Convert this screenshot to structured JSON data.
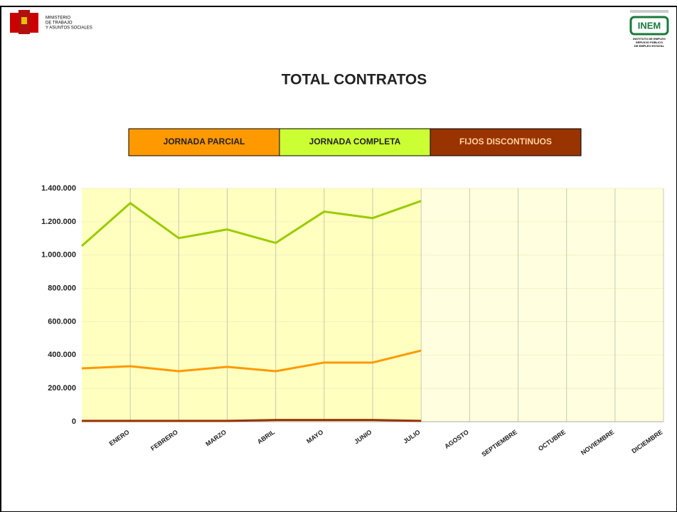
{
  "header": {
    "ministry": [
      "MINISTERIO",
      "DE TRABAJO",
      "Y ASUNTOS SOCIALES"
    ],
    "inem": {
      "name": "INEM",
      "lines": [
        "INSTITUTO DE EMPLEO",
        "SERVICIO PÚBLICO",
        "DE EMPLEO ESTATAL"
      ]
    }
  },
  "chart_data": {
    "type": "line",
    "title": "TOTAL CONTRATOS",
    "categories": [
      null,
      "ENERO",
      "FEBRERO",
      "MARZO",
      "ABRIL",
      "MAYO",
      "JUNIO",
      "JULIO",
      "AGOSTO",
      "SEPTIEMBRE",
      "OCTUBRE",
      "NOVIEMBRE",
      "DICIEMBRE"
    ],
    "series": [
      {
        "name": "JORNADA PARCIAL",
        "color": "#ff9900",
        "legend_fill": "#ff9900",
        "values": [
          320000,
          333000,
          303000,
          329000,
          303000,
          355000,
          355000,
          427000,
          null,
          null,
          null,
          null,
          null
        ]
      },
      {
        "name": "JORNADA COMPLETA",
        "color": "#99cc00",
        "legend_fill": "#ccff33",
        "values": [
          1055000,
          1312000,
          1102000,
          1154000,
          1073000,
          1261000,
          1222000,
          1325000,
          null,
          null,
          null,
          null,
          null
        ]
      },
      {
        "name": "FIJOS DISCONTINUOS",
        "color": "#993300",
        "legend_fill": "#993300",
        "values": [
          5000,
          5000,
          5000,
          5000,
          10000,
          10000,
          10000,
          5000,
          null,
          null,
          null,
          null,
          null
        ]
      }
    ],
    "ylim": [
      0,
      1400000
    ],
    "yticks": [
      0,
      {
        "value": 200000,
        "label": "200.000"
      },
      {
        "value": 400000,
        "label": "400.000"
      },
      {
        "value": 600000,
        "label": "600.000"
      },
      {
        "value": 800000,
        "label": "800.000"
      },
      {
        "value": 1000000,
        "label": "1.000.000"
      },
      {
        "value": 1200000,
        "label": "1.200.000"
      },
      {
        "value": 1400000,
        "label": "1.400.000"
      }
    ],
    "grid": true,
    "legend": "top"
  }
}
